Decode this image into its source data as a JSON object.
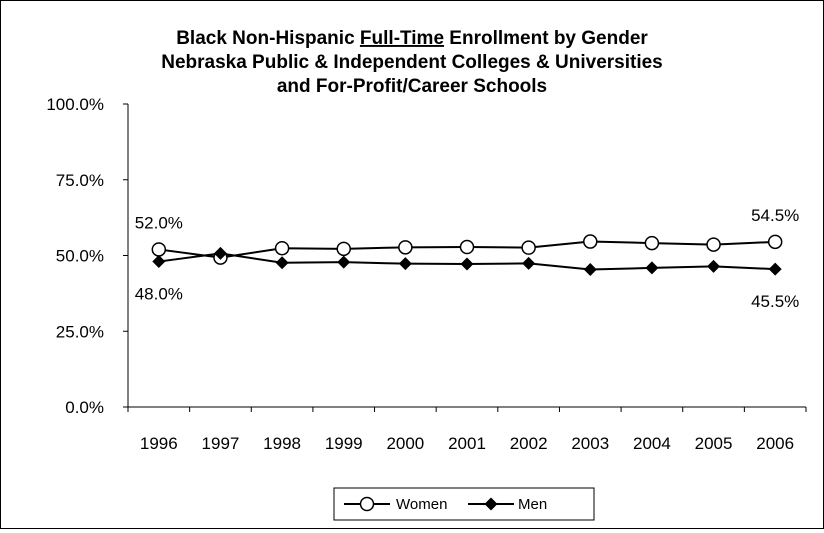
{
  "chart_data": {
    "type": "line",
    "title_lines": [
      {
        "before": "Black Non-Hispanic ",
        "underlined": "Full-Time",
        "after": " Enrollment by Gender"
      },
      {
        "before": "Nebraska Public & Independent Colleges & Universities",
        "underlined": "",
        "after": ""
      },
      {
        "before": "and For-Profit/Career Schools",
        "underlined": "",
        "after": ""
      }
    ],
    "categories": [
      "1996",
      "1997",
      "1998",
      "1999",
      "2000",
      "2001",
      "2002",
      "2003",
      "2004",
      "2005",
      "2006"
    ],
    "series": [
      {
        "name": "Women",
        "marker": "open-circle",
        "color": "#000000",
        "values": [
          52.0,
          49.3,
          52.4,
          52.2,
          52.7,
          52.8,
          52.6,
          54.6,
          54.1,
          53.6,
          54.5
        ]
      },
      {
        "name": "Men",
        "marker": "filled-diamond",
        "color": "#000000",
        "values": [
          48.0,
          50.7,
          47.6,
          47.8,
          47.3,
          47.2,
          47.4,
          45.4,
          45.9,
          46.4,
          45.5
        ]
      }
    ],
    "data_labels": [
      {
        "series": 0,
        "index": 0,
        "text": "52.0%",
        "position": "above"
      },
      {
        "series": 1,
        "index": 0,
        "text": "48.0%",
        "position": "below"
      },
      {
        "series": 0,
        "index": 10,
        "text": "54.5%",
        "position": "above"
      },
      {
        "series": 1,
        "index": 10,
        "text": "45.5%",
        "position": "below"
      }
    ],
    "y_ticks": [
      "0.0%",
      "25.0%",
      "50.0%",
      "75.0%",
      "100.0%"
    ],
    "ylim": [
      0,
      100
    ],
    "grid": false,
    "legend_position": "bottom"
  }
}
